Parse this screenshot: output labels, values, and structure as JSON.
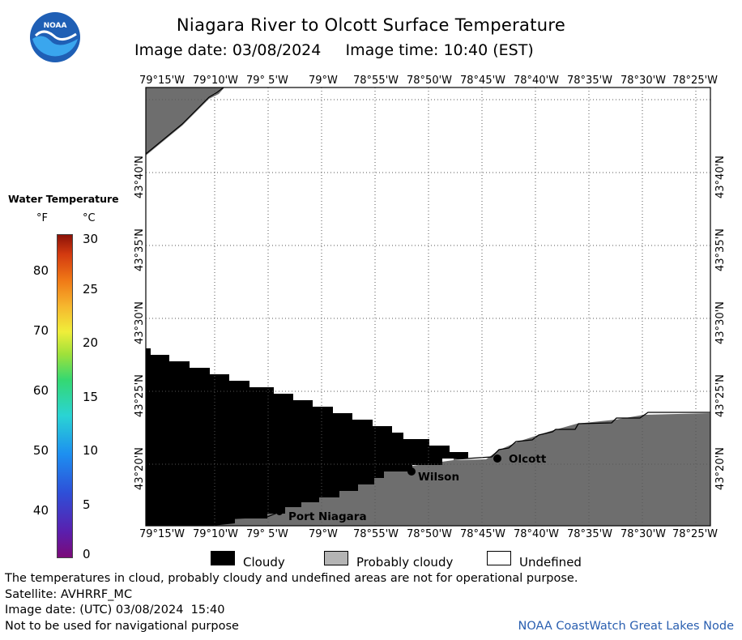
{
  "title": "Niagara River to Olcott Surface Temperature",
  "subtitle": "Image date: 03/08/2024     Image time: 10:40 (EST)",
  "logo_text": "NOAA",
  "legend": {
    "title": "Water Temperature",
    "unit_f": "°F",
    "unit_c": "°C",
    "ticks_f": [
      "80",
      "70",
      "60",
      "50",
      "40"
    ],
    "ticks_c": [
      "30",
      "25",
      "20",
      "15",
      "10",
      "5",
      "0"
    ]
  },
  "map": {
    "lon_labels": [
      "79°15'W",
      "79°10'W",
      "79° 5'W",
      "79°W",
      "78°55'W",
      "78°50'W",
      "78°45'W",
      "78°40'W",
      "78°35'W",
      "78°30'W",
      "78°25'W"
    ],
    "lat_labels": [
      "43°40'N",
      "43°35'N",
      "43°30'N",
      "43°25'N",
      "43°20'N"
    ],
    "cities": [
      "Olcott",
      "Wilson",
      "Port Niagara"
    ]
  },
  "key": {
    "cloudy": "Cloudy",
    "probably_cloudy": "Probably cloudy",
    "undefined": "Undefined"
  },
  "footer": {
    "line1": "The temperatures in cloud, probably cloudy and undefined areas are not for operational purpose.",
    "line2": "Satellite: AVHRRF_MC",
    "line3": "Image date: (UTC) 03/08/2024  15:40",
    "line4": "Not to be used for navigational purpose",
    "credit": "NOAA CoastWatch Great Lakes Node"
  },
  "colors": {
    "cloudy": "#000000",
    "probably_cloudy": "#6e6e6e",
    "undefined": "#ffffff",
    "credit": "#2a5fb0",
    "noaa_blue": "#1f5fb5"
  }
}
